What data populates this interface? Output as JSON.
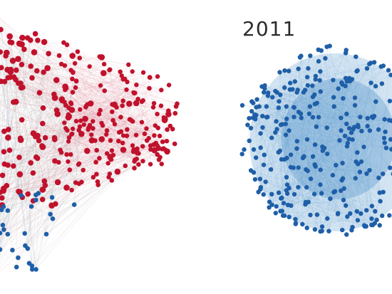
{
  "figure": {
    "year_label": "2011",
    "colors": {
      "red_node": "#c0122c",
      "blue_node": "#1f5fa8",
      "red_edge": "#d26a7e",
      "gray_edge": "#9a9a9a",
      "blue_edge": "#5a9bd0",
      "blue_cloud": "#4f93cc"
    }
  }
}
